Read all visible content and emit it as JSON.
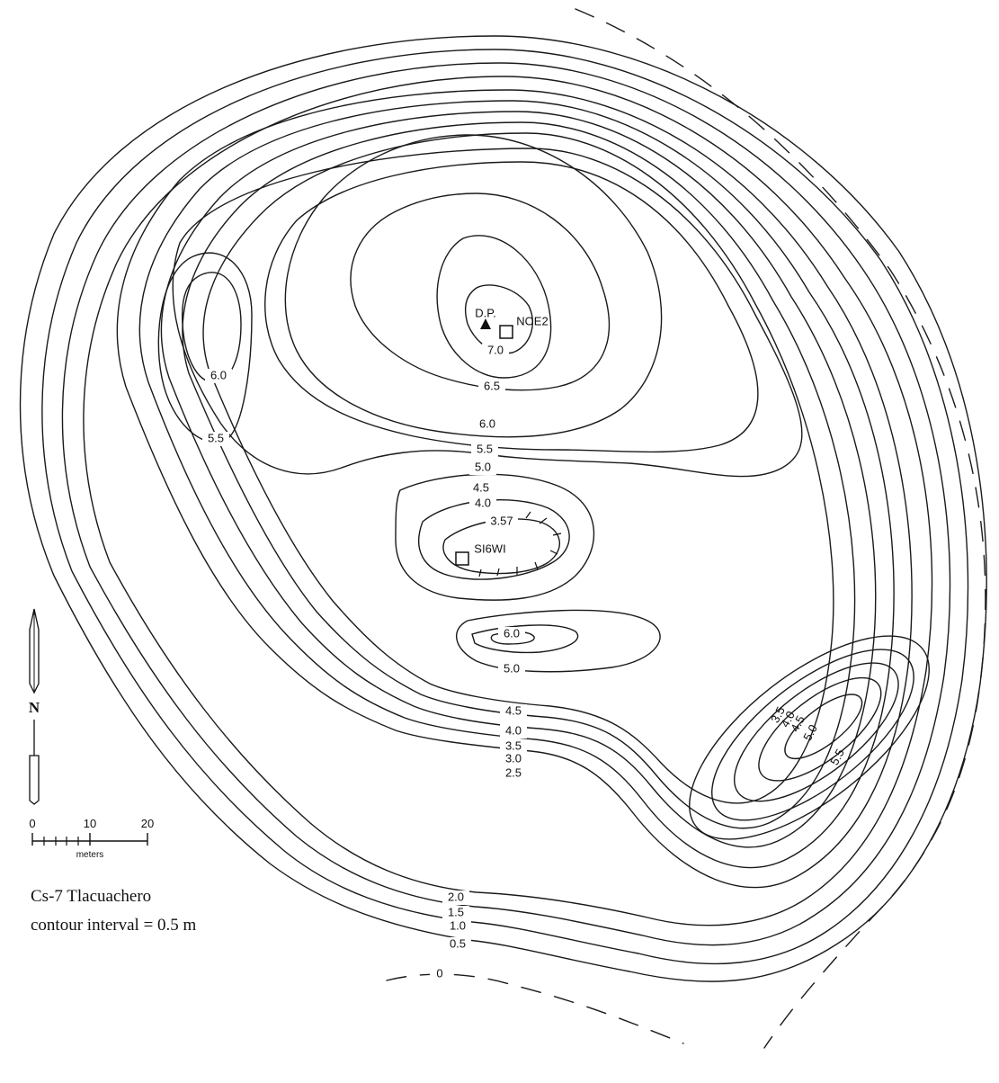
{
  "map": {
    "site_name": "Cs-7 Tlacuachero",
    "contour_interval": "contour interval = 0.5 m",
    "north_label": "N",
    "scale": {
      "ticks": [
        "0",
        "10",
        "20"
      ],
      "unit": "meters"
    },
    "point_labels": {
      "datum": "D.P.",
      "unit_ne": "NOE2",
      "unit_sw": "SI6WI"
    },
    "contour_labels": {
      "zero": "0",
      "c05": "0.5",
      "c10": "1.0",
      "c15": "1.5",
      "c20": "2.0",
      "c25": "2.5",
      "c30": "3.0",
      "c35": "3.5",
      "c40": "4.0",
      "c45": "4.5",
      "c50": "5.0",
      "c55": "5.5",
      "c60": "6.0",
      "c65": "6.5",
      "c70": "7.0",
      "west_60": "6.0",
      "west_55": "5.5",
      "basin_40": "4.0",
      "basin_45": "4.5",
      "basin_357": "3.57",
      "south_60": "6.0",
      "south_50": "5.0",
      "east_35": "3.5",
      "east_40": "4.0",
      "east_45": "4.5",
      "east_50": "5.0",
      "east_55": "5.5"
    }
  }
}
